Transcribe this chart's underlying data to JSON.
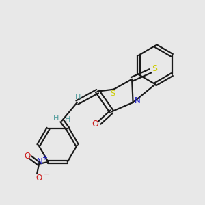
{
  "background_color": "#e8e8e8",
  "bond_color": "#1a1a1a",
  "S_color": "#cccc00",
  "N_color": "#1a1acc",
  "O_color": "#cc1a1a",
  "H_color": "#4a9a9a",
  "figsize": [
    3.0,
    3.0
  ],
  "dpi": 100,
  "xlim": [
    0,
    10
  ],
  "ylim": [
    0,
    10
  ]
}
